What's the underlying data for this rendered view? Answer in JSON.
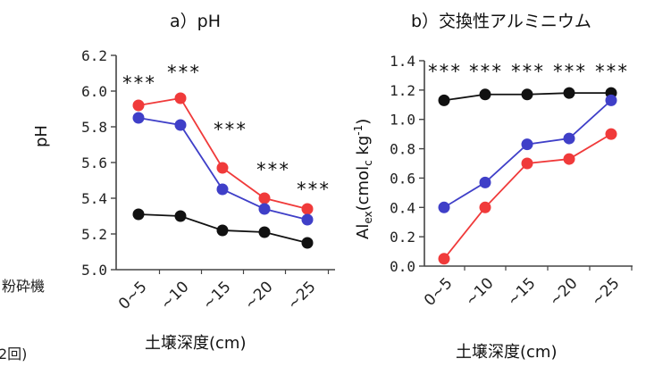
{
  "left_fragment": {
    "line1": "粉砕機",
    "line2": "2回)"
  },
  "colors": {
    "black": "#111111",
    "blue": "#3f3fc8",
    "red": "#f03a3a"
  },
  "chart_data": [
    {
      "type": "line",
      "title": "a）pH",
      "ylabel": "pH",
      "xlabel": "土壌深度(cm)",
      "categories": [
        "0~5",
        "~10",
        "~15",
        "~20",
        "~25"
      ],
      "ylim": [
        5.0,
        6.2
      ],
      "yticks": [
        "5.0",
        "5.2",
        "5.4",
        "5.6",
        "5.8",
        "6.0",
        "6.2"
      ],
      "series": [
        {
          "color": "red",
          "values": [
            5.92,
            5.96,
            5.57,
            5.4,
            5.34
          ]
        },
        {
          "color": "blue",
          "values": [
            5.85,
            5.81,
            5.45,
            5.34,
            5.28
          ]
        },
        {
          "color": "black",
          "values": [
            5.31,
            5.3,
            5.22,
            5.21,
            5.15
          ]
        }
      ],
      "annotations": [
        "***",
        "***",
        "***",
        "***",
        "***"
      ]
    },
    {
      "type": "line",
      "title": "b）交換性アルミニウム",
      "ylabel": "Al",
      "ylabel_sub": "ex",
      "ylabel_mid": "(cmol",
      "ylabel_sub2": "c",
      "ylabel_tail": " kg",
      "ylabel_sup": "-1",
      "ylabel_end": ")",
      "xlabel": "土壌深度(cm)",
      "categories": [
        "0~5",
        "~10",
        "~15",
        "~20",
        "~25"
      ],
      "ylim": [
        0.0,
        1.4
      ],
      "yticks": [
        "0.0",
        "0.2",
        "0.4",
        "0.6",
        "0.8",
        "1.0",
        "1.2",
        "1.4"
      ],
      "series": [
        {
          "color": "black",
          "values": [
            1.13,
            1.17,
            1.17,
            1.18,
            1.18
          ]
        },
        {
          "color": "blue",
          "values": [
            0.4,
            0.57,
            0.83,
            0.87,
            1.13
          ]
        },
        {
          "color": "red",
          "values": [
            0.05,
            0.4,
            0.7,
            0.73,
            0.9
          ]
        }
      ],
      "annotations": [
        "***",
        "***",
        "***",
        "***",
        "***"
      ]
    }
  ]
}
